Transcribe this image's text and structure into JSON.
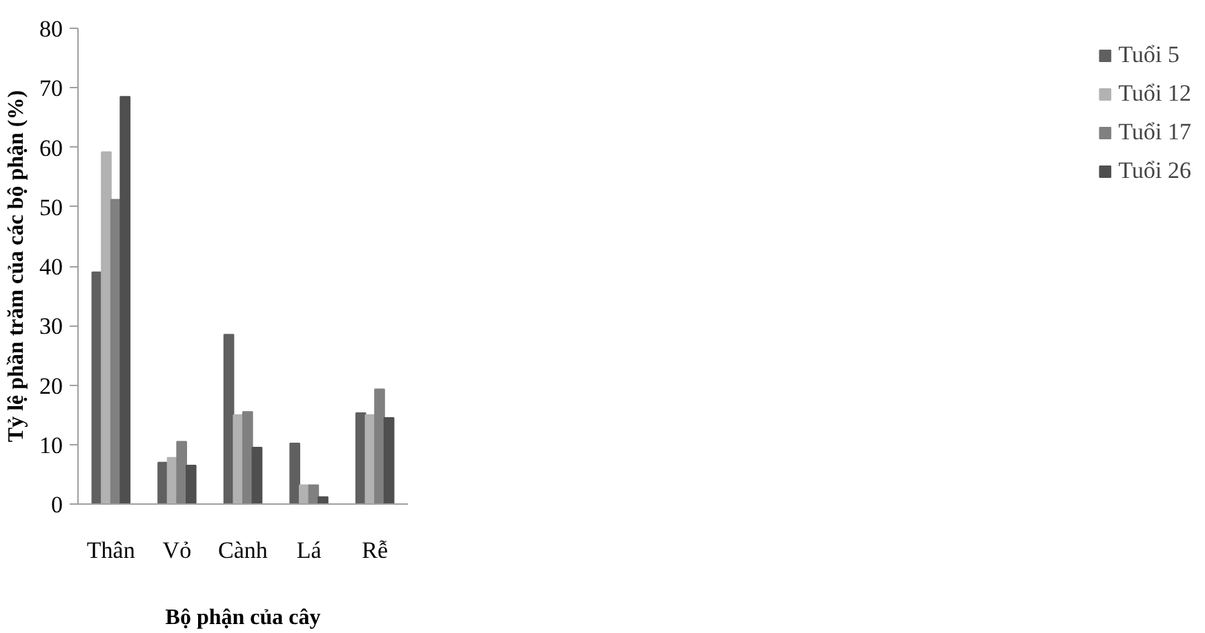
{
  "chart_data": {
    "type": "bar",
    "xlabel": "Bộ phận của cây",
    "ylabel": "Tỷ lệ phần trăm của các bộ phận (%)",
    "categories": [
      "Thân",
      "Vỏ",
      "Cành",
      "Lá",
      "Rễ"
    ],
    "series": [
      {
        "name": "Tuổi 5",
        "color": "#606060",
        "values": [
          39,
          7,
          28.5,
          10.2,
          15.3
        ]
      },
      {
        "name": "Tuổi 12",
        "color": "#b2b2b2",
        "values": [
          59.2,
          7.8,
          15,
          3.2,
          15
        ]
      },
      {
        "name": "Tuổi 17",
        "color": "#808080",
        "values": [
          51.2,
          10.5,
          15.5,
          3.2,
          19.3
        ]
      },
      {
        "name": "Tuổi 26",
        "color": "#4f4f4f",
        "values": [
          68.5,
          6.5,
          9.5,
          1.2,
          14.5
        ]
      }
    ],
    "ylim": [
      0,
      80
    ],
    "yticks": [
      0,
      10,
      20,
      30,
      40,
      50,
      60,
      70,
      80
    ],
    "grid": false,
    "legend": "right"
  }
}
